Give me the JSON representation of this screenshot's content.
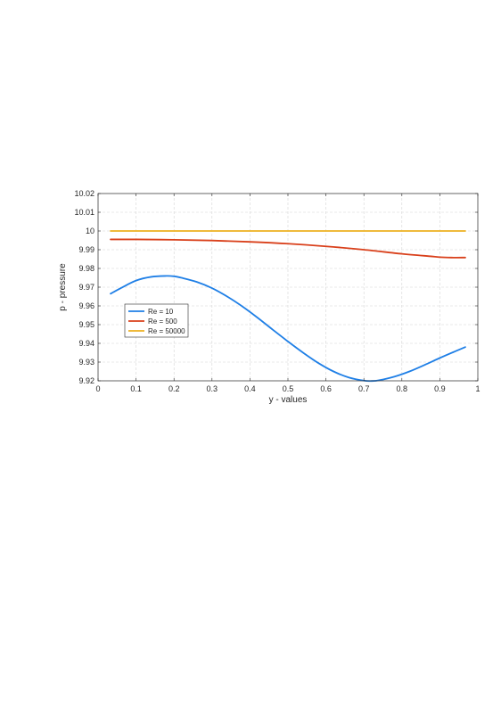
{
  "chart_data": {
    "type": "line",
    "title": "",
    "xlabel": "y - values",
    "ylabel": "p - pressure",
    "xlim": [
      0,
      1
    ],
    "ylim": [
      9.92,
      10.02
    ],
    "xticks": [
      0,
      0.1,
      0.2,
      0.3,
      0.4,
      0.5,
      0.6,
      0.7,
      0.8,
      0.9,
      1
    ],
    "xtick_labels": [
      "0",
      "0.1",
      "0.2",
      "0.3",
      "0.4",
      "0.5",
      "0.6",
      "0.7",
      "0.8",
      "0.9",
      "1"
    ],
    "yticks": [
      9.92,
      9.93,
      9.94,
      9.95,
      9.96,
      9.97,
      9.98,
      9.99,
      10,
      10.01,
      10.02
    ],
    "ytick_labels": [
      "9.92",
      "9.93",
      "9.94",
      "9.95",
      "9.96",
      "9.97",
      "9.98",
      "9.99",
      "10",
      "10.01",
      "10.02"
    ],
    "grid": true,
    "legend_position": "middle-left",
    "series": [
      {
        "name": "Re = 10",
        "color": "#1f7fe6",
        "x": [
          0.033,
          0.06,
          0.1,
          0.14,
          0.18,
          0.2,
          0.22,
          0.26,
          0.3,
          0.34,
          0.38,
          0.42,
          0.46,
          0.5,
          0.54,
          0.58,
          0.62,
          0.66,
          0.7,
          0.72,
          0.74,
          0.78,
          0.82,
          0.86,
          0.9,
          0.94,
          0.967
        ],
        "y": [
          9.9665,
          9.9695,
          9.9735,
          9.9755,
          9.976,
          9.9758,
          9.975,
          9.9728,
          9.9695,
          9.965,
          9.9597,
          9.9537,
          9.9473,
          9.941,
          9.935,
          9.9295,
          9.925,
          9.9218,
          9.9201,
          9.9199,
          9.9203,
          9.9222,
          9.925,
          9.9285,
          9.9322,
          9.9357,
          9.938
        ]
      },
      {
        "name": "Re = 500",
        "color": "#d9401b",
        "x": [
          0.033,
          0.1,
          0.2,
          0.3,
          0.4,
          0.5,
          0.6,
          0.7,
          0.8,
          0.88,
          0.9,
          0.93,
          0.967
        ],
        "y": [
          9.9955,
          9.9955,
          9.9953,
          9.9949,
          9.9942,
          9.9932,
          9.9918,
          9.99,
          9.9878,
          9.9864,
          9.986,
          9.9858,
          9.9858
        ]
      },
      {
        "name": "Re = 50000",
        "color": "#edb120",
        "x": [
          0.033,
          0.1,
          0.2,
          0.3,
          0.4,
          0.5,
          0.6,
          0.7,
          0.8,
          0.9,
          0.967
        ],
        "y": [
          10.0,
          10.0,
          10.0,
          10.0,
          10.0,
          10.0,
          10.0,
          10.0,
          10.0,
          10.0,
          10.0
        ]
      }
    ]
  }
}
